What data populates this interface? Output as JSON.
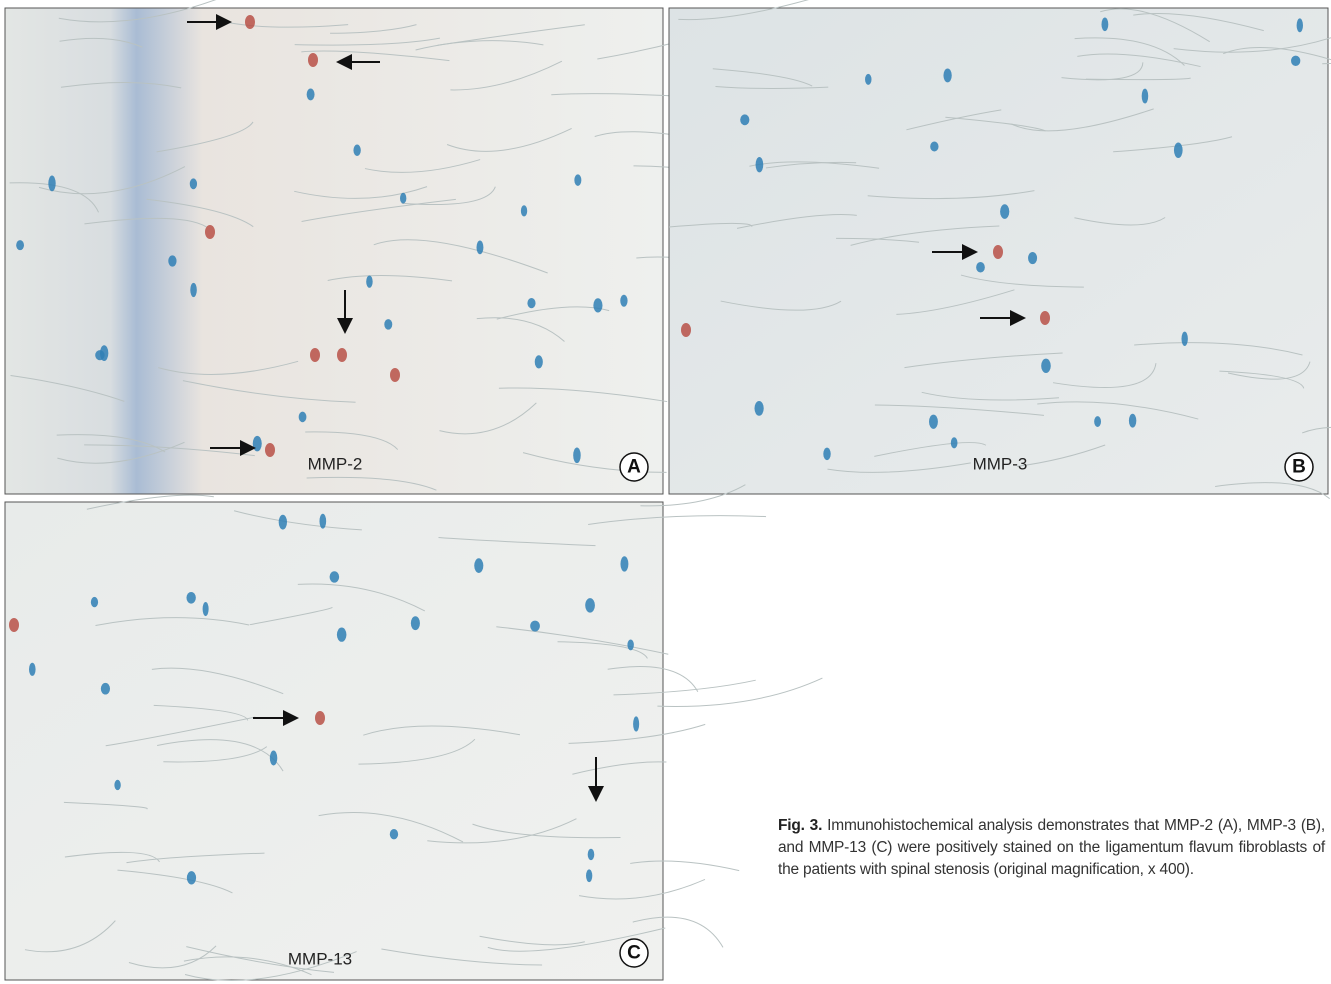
{
  "figure": {
    "panels": [
      {
        "label": "A",
        "stain": "MMP-2"
      },
      {
        "label": "B",
        "stain": "MMP-3"
      },
      {
        "label": "C",
        "stain": "MMP-13"
      }
    ],
    "caption": {
      "label": "Fig. 3.",
      "text": "Immunohistochemical analysis demonstrates that MMP-2 (A), MMP-3 (B), and MMP-13 (C) were positively stained on the ligamentum flavum fibroblasts of the patients with spinal stenosis (original magnification, x 400)."
    }
  }
}
